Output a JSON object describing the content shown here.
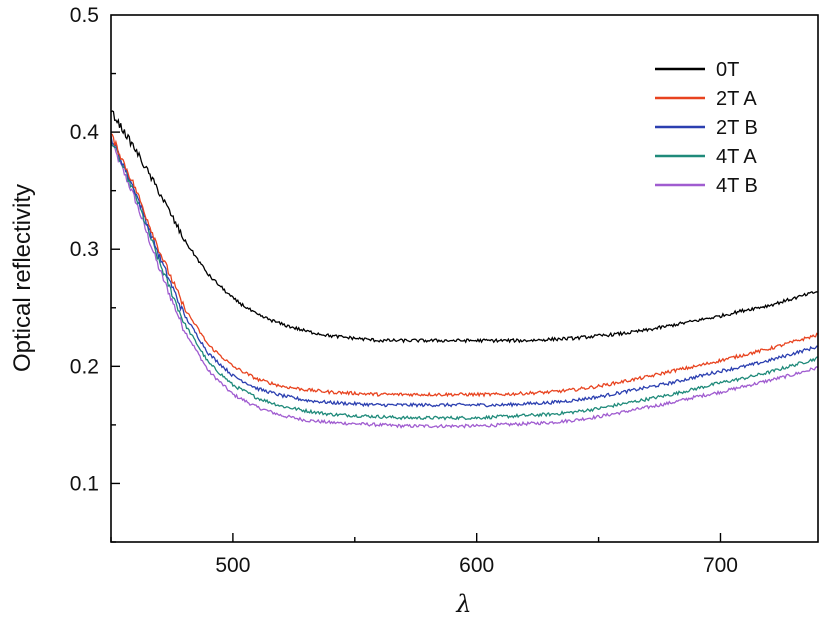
{
  "chart_data": {
    "type": "line",
    "title": "",
    "xlabel": "λ",
    "ylabel": "Optical reflectivity",
    "xlim": [
      450,
      740
    ],
    "ylim": [
      0.05,
      0.5
    ],
    "x_ticks": [
      500,
      600,
      700
    ],
    "y_ticks": [
      0.1,
      0.2,
      0.3,
      0.4,
      0.5
    ],
    "x_tick_labels": [
      "500",
      "600",
      "700"
    ],
    "y_tick_labels": [
      "0.1",
      "0.2",
      "0.3",
      "0.4",
      "0.5"
    ],
    "grid": false,
    "legend_position": "top-right",
    "x": [
      450,
      460,
      470,
      480,
      490,
      500,
      510,
      520,
      530,
      540,
      550,
      560,
      570,
      580,
      590,
      600,
      610,
      620,
      630,
      640,
      650,
      660,
      670,
      680,
      690,
      700,
      710,
      720,
      730,
      740
    ],
    "series": [
      {
        "name": "0T",
        "color": "#000000",
        "values": [
          0.418,
          0.385,
          0.348,
          0.308,
          0.278,
          0.258,
          0.244,
          0.236,
          0.23,
          0.226,
          0.224,
          0.222,
          0.222,
          0.222,
          0.222,
          0.222,
          0.222,
          0.222,
          0.223,
          0.224,
          0.226,
          0.228,
          0.231,
          0.235,
          0.239,
          0.243,
          0.248,
          0.252,
          0.258,
          0.264
        ]
      },
      {
        "name": "2T A",
        "color": "#e8431f",
        "values": [
          0.398,
          0.352,
          0.298,
          0.25,
          0.218,
          0.2,
          0.189,
          0.183,
          0.18,
          0.178,
          0.177,
          0.176,
          0.176,
          0.176,
          0.176,
          0.176,
          0.176,
          0.177,
          0.178,
          0.18,
          0.183,
          0.187,
          0.191,
          0.196,
          0.2,
          0.205,
          0.21,
          0.215,
          0.221,
          0.227
        ]
      },
      {
        "name": "2T B",
        "color": "#2b3fb0",
        "values": [
          0.396,
          0.349,
          0.293,
          0.244,
          0.211,
          0.192,
          0.181,
          0.175,
          0.171,
          0.169,
          0.168,
          0.167,
          0.167,
          0.167,
          0.167,
          0.167,
          0.167,
          0.168,
          0.169,
          0.171,
          0.174,
          0.178,
          0.182,
          0.186,
          0.191,
          0.196,
          0.2,
          0.205,
          0.211,
          0.217
        ]
      },
      {
        "name": "4T A",
        "color": "#1f8a7a",
        "values": [
          0.394,
          0.346,
          0.288,
          0.237,
          0.203,
          0.184,
          0.173,
          0.166,
          0.162,
          0.159,
          0.158,
          0.157,
          0.156,
          0.156,
          0.156,
          0.156,
          0.157,
          0.158,
          0.159,
          0.161,
          0.164,
          0.168,
          0.172,
          0.176,
          0.181,
          0.186,
          0.19,
          0.195,
          0.201,
          0.207
        ]
      },
      {
        "name": "4T B",
        "color": "#a05cd0",
        "values": [
          0.392,
          0.342,
          0.282,
          0.231,
          0.196,
          0.176,
          0.165,
          0.158,
          0.154,
          0.152,
          0.151,
          0.15,
          0.149,
          0.149,
          0.149,
          0.149,
          0.15,
          0.151,
          0.152,
          0.154,
          0.157,
          0.161,
          0.165,
          0.169,
          0.174,
          0.178,
          0.183,
          0.188,
          0.193,
          0.199
        ]
      }
    ]
  }
}
